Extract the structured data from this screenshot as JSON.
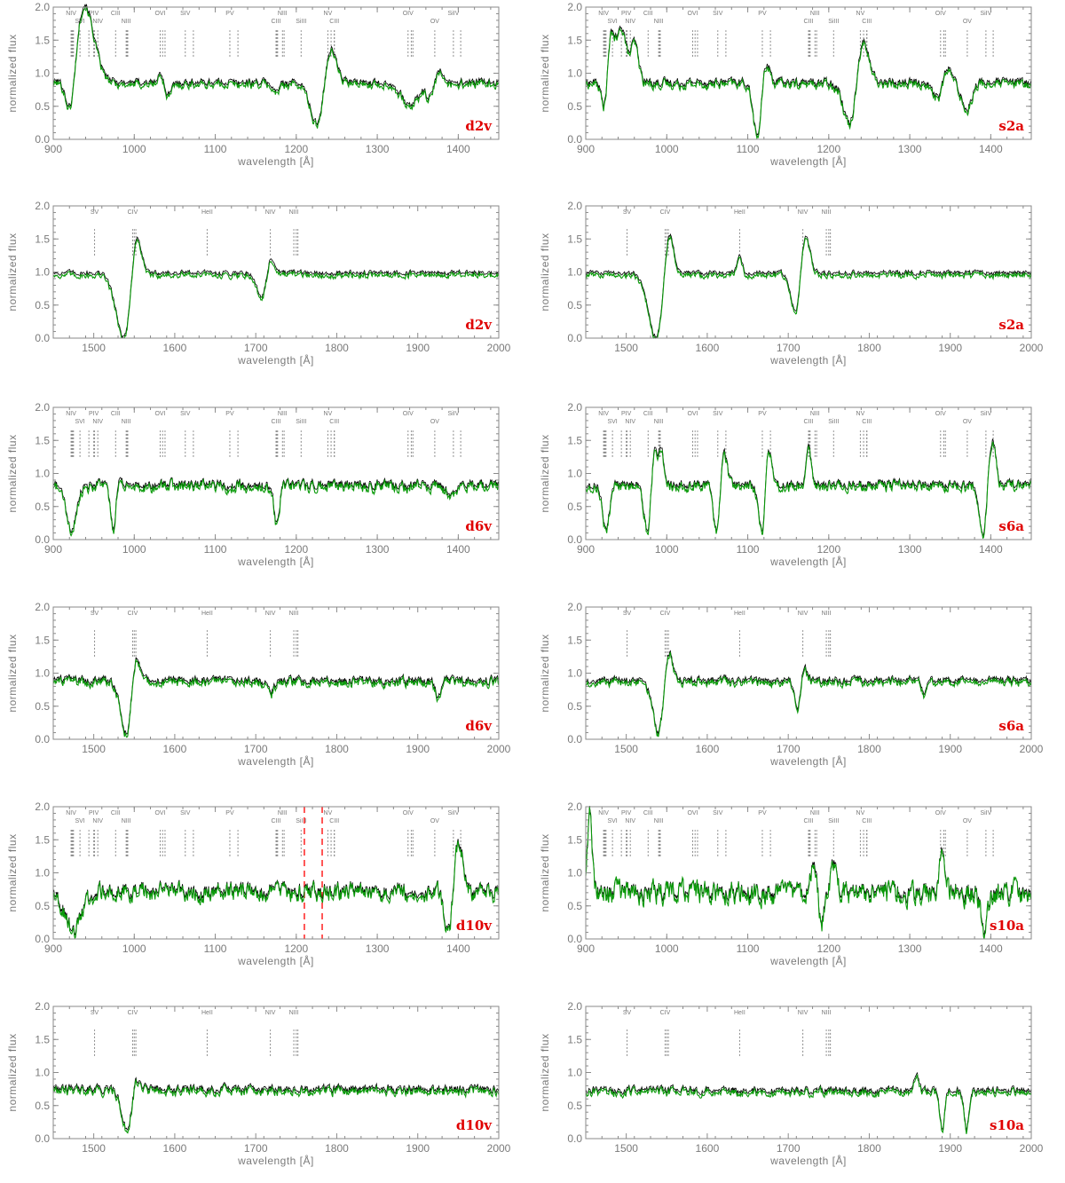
{
  "figure": {
    "colors": {
      "axis": "#8a8a8a",
      "model_a": "#000000",
      "model_b": "#0a9a0a",
      "panel_label": "#e00000",
      "marker": "#ff2020"
    },
    "ylabel": "normalized flux",
    "xlabel": "wavelength [Å]"
  },
  "chart_data": [
    {
      "type": "line",
      "label": "d2v",
      "xlim": [
        900,
        1450
      ],
      "ylim": [
        0,
        2.0
      ],
      "xticks": [
        900,
        1000,
        1100,
        1200,
        1300,
        1400
      ],
      "yticks": [
        "0.0",
        "0.5",
        "1.0",
        "1.5",
        "2.0"
      ],
      "xlabel": "wavelength [Å]",
      "ylabel": "normalized flux",
      "ions": [
        "NIV",
        "SVI",
        "PIV",
        "NIV",
        "CIII",
        "NIII",
        "OVI",
        "SIV",
        "PV",
        "CIII",
        "NIII",
        "SiIII",
        "NV",
        "CIII",
        "OIV",
        "OV",
        "SiIV"
      ],
      "profile": {
        "continuum": 0.85,
        "noise": 0.07,
        "noise_black": 0.06,
        "features": [
          [
            938,
            1.2,
            12
          ],
          [
            922,
            -0.8,
            6
          ],
          [
            1038,
            -0.3,
            6
          ],
          [
            1034,
            0.35,
            4
          ],
          [
            1240,
            0.75,
            8
          ],
          [
            1228,
            -0.8,
            9
          ],
          [
            1340,
            -0.35,
            10
          ],
          [
            1372,
            0.45,
            6
          ],
          [
            1368,
            -0.5,
            6
          ],
          [
            1175,
            -0.15,
            4
          ]
        ]
      }
    },
    {
      "type": "line",
      "label": "s2a",
      "xlim": [
        900,
        1450
      ],
      "ylim": [
        0,
        2.0
      ],
      "xticks": [
        900,
        1000,
        1100,
        1200,
        1300,
        1400
      ],
      "yticks": [
        "0.0",
        "0.5",
        "1.0",
        "1.5",
        "2.0"
      ],
      "xlabel": "wavelength [Å]",
      "ylabel": "normalized flux",
      "ions": [
        "NIV",
        "SVI",
        "PIV",
        "NIV",
        "CIII",
        "NIII",
        "OVI",
        "SIV",
        "PV",
        "CIII",
        "NIII",
        "SiIII",
        "NV",
        "CIII",
        "OIV",
        "OV",
        "SiIV"
      ],
      "profile": {
        "continuum": 0.85,
        "noise": 0.08,
        "noise_black": 0.07,
        "features": [
          [
            930,
            0.9,
            6
          ],
          [
            945,
            0.8,
            5
          ],
          [
            960,
            0.6,
            5
          ],
          [
            924,
            -0.8,
            4
          ],
          [
            1112,
            -0.85,
            5
          ],
          [
            1122,
            0.35,
            5
          ],
          [
            1240,
            0.8,
            8
          ],
          [
            1228,
            -0.8,
            8
          ],
          [
            1345,
            0.5,
            6
          ],
          [
            1340,
            -0.4,
            8
          ],
          [
            1370,
            -0.4,
            6
          ]
        ]
      }
    },
    {
      "type": "line",
      "label": "d2v",
      "xlim": [
        1450,
        2000
      ],
      "ylim": [
        0,
        2.0
      ],
      "xticks": [
        1500,
        1600,
        1700,
        1800,
        1900,
        2000
      ],
      "yticks": [
        "0.0",
        "0.5",
        "1.0",
        "1.5",
        "2.0"
      ],
      "xlabel": "wavelength [Å]",
      "ylabel": "normalized flux",
      "ions": [
        "SV",
        "CIV",
        "HeII",
        "NIV",
        "NIII"
      ],
      "profile": {
        "continuum": 0.97,
        "noise": 0.05,
        "noise_black": 0.04,
        "features": [
          [
            1552,
            0.85,
            6
          ],
          [
            1538,
            -1.0,
            10
          ],
          [
            1718,
            0.3,
            5
          ],
          [
            1708,
            -0.4,
            6
          ]
        ]
      }
    },
    {
      "type": "line",
      "label": "s2a",
      "xlim": [
        1450,
        2000
      ],
      "ylim": [
        0,
        2.0
      ],
      "xticks": [
        1500,
        1600,
        1700,
        1800,
        1900,
        2000
      ],
      "yticks": [
        "0.0",
        "0.5",
        "1.0",
        "1.5",
        "2.0"
      ],
      "xlabel": "wavelength [Å]",
      "ylabel": "normalized flux",
      "ions": [
        "SV",
        "CIV",
        "HeII",
        "NIV",
        "NIII"
      ],
      "profile": {
        "continuum": 0.97,
        "noise": 0.05,
        "noise_black": 0.04,
        "features": [
          [
            1552,
            0.9,
            6
          ],
          [
            1538,
            -1.0,
            10
          ],
          [
            1640,
            0.25,
            3
          ],
          [
            1720,
            0.65,
            6
          ],
          [
            1710,
            -0.7,
            6
          ]
        ]
      }
    },
    {
      "type": "line",
      "label": "d6v",
      "xlim": [
        900,
        1450
      ],
      "ylim": [
        0,
        2.0
      ],
      "xticks": [
        900,
        1000,
        1100,
        1200,
        1300,
        1400
      ],
      "yticks": [
        "0.0",
        "0.5",
        "1.0",
        "1.5",
        "2.0"
      ],
      "xlabel": "wavelength [Å]",
      "ylabel": "normalized flux",
      "ions": [
        "NIV",
        "SVI",
        "PIV",
        "NIV",
        "CIII",
        "NIII",
        "OVI",
        "SIV",
        "PV",
        "CIII",
        "NIII",
        "SiIII",
        "NV",
        "CIII",
        "OIV",
        "OV",
        "SiIV"
      ],
      "profile": {
        "continuum": 0.82,
        "noise": 0.1,
        "noise_black": 0.08,
        "features": [
          [
            922,
            -0.7,
            6
          ],
          [
            975,
            -0.7,
            4
          ],
          [
            980,
            0.35,
            3
          ],
          [
            1176,
            -0.6,
            3
          ],
          [
            1392,
            -0.2,
            6
          ]
        ]
      }
    },
    {
      "type": "line",
      "label": "s6a",
      "xlim": [
        900,
        1450
      ],
      "ylim": [
        0,
        2.0
      ],
      "xticks": [
        900,
        1000,
        1100,
        1200,
        1300,
        1400
      ],
      "yticks": [
        "0.0",
        "0.5",
        "1.0",
        "1.5",
        "2.0"
      ],
      "xlabel": "wavelength [Å]",
      "ylabel": "normalized flux",
      "ions": [
        "NIV",
        "SVI",
        "PIV",
        "NIV",
        "CIII",
        "NIII",
        "OVI",
        "SIV",
        "PV",
        "CIII",
        "NIII",
        "SiIII",
        "NV",
        "CIII",
        "OIV",
        "OV",
        "SiIV"
      ],
      "profile": {
        "continuum": 0.82,
        "noise": 0.09,
        "noise_black": 0.07,
        "features": [
          [
            925,
            -0.7,
            4
          ],
          [
            976,
            -0.7,
            4
          ],
          [
            985,
            0.6,
            3
          ],
          [
            993,
            0.6,
            3
          ],
          [
            1062,
            -0.8,
            4
          ],
          [
            1070,
            0.6,
            4
          ],
          [
            1118,
            -0.8,
            4
          ],
          [
            1125,
            0.6,
            4
          ],
          [
            1175,
            0.6,
            3
          ],
          [
            1390,
            -0.8,
            4
          ],
          [
            1402,
            0.7,
            4
          ]
        ]
      }
    },
    {
      "type": "line",
      "label": "d6v",
      "xlim": [
        1450,
        2000
      ],
      "ylim": [
        0,
        2.0
      ],
      "xticks": [
        1500,
        1600,
        1700,
        1800,
        1900,
        2000
      ],
      "yticks": [
        "0.0",
        "0.5",
        "1.0",
        "1.5",
        "2.0"
      ],
      "xlabel": "wavelength [Å]",
      "ylabel": "normalized flux",
      "ions": [
        "SV",
        "CIV",
        "HeII",
        "NIV",
        "NIII"
      ],
      "profile": {
        "continuum": 0.88,
        "noise": 0.08,
        "noise_black": 0.07,
        "features": [
          [
            1552,
            0.45,
            5
          ],
          [
            1540,
            -0.8,
            7
          ],
          [
            1718,
            -0.2,
            4
          ],
          [
            1925,
            -0.25,
            3
          ]
        ]
      }
    },
    {
      "type": "line",
      "label": "s6a",
      "xlim": [
        1450,
        2000
      ],
      "ylim": [
        0,
        2.0
      ],
      "xticks": [
        1500,
        1600,
        1700,
        1800,
        1900,
        2000
      ],
      "yticks": [
        "0.0",
        "0.5",
        "1.0",
        "1.5",
        "2.0"
      ],
      "xlabel": "wavelength [Å]",
      "ylabel": "normalized flux",
      "ions": [
        "SV",
        "CIV",
        "HeII",
        "NIV",
        "NIII"
      ],
      "profile": {
        "continuum": 0.88,
        "noise": 0.07,
        "noise_black": 0.06,
        "features": [
          [
            1552,
            0.55,
            5
          ],
          [
            1540,
            -0.8,
            7
          ],
          [
            1718,
            0.3,
            4
          ],
          [
            1712,
            -0.5,
            4
          ],
          [
            1868,
            -0.2,
            3
          ]
        ]
      }
    },
    {
      "type": "line",
      "label": "d10v",
      "xlim": [
        900,
        1450
      ],
      "ylim": [
        0,
        2.0
      ],
      "xticks": [
        900,
        1000,
        1100,
        1200,
        1300,
        1400
      ],
      "yticks": [
        "0.0",
        "0.5",
        "1.0",
        "1.5",
        "2.0"
      ],
      "xlabel": "wavelength [Å]",
      "ylabel": "normalized flux",
      "ions": [
        "NIV",
        "SVI",
        "PIV",
        "NIV",
        "CIII",
        "NIII",
        "OVI",
        "SIV",
        "PV",
        "CIII",
        "NIII",
        "SiIII",
        "NV",
        "CIII",
        "OIV",
        "OV",
        "SiIV"
      ],
      "markers": [
        1210,
        1232
      ],
      "profile": {
        "continuum": 0.72,
        "noise": 0.15,
        "noise_black": 0.13,
        "features": [
          [
            925,
            -0.6,
            10
          ],
          [
            1400,
            0.75,
            6
          ],
          [
            1388,
            -0.7,
            5
          ]
        ]
      }
    },
    {
      "type": "line",
      "label": "s10a",
      "xlim": [
        900,
        1450
      ],
      "ylim": [
        0,
        2.0
      ],
      "xticks": [
        900,
        1000,
        1100,
        1200,
        1300,
        1400
      ],
      "yticks": [
        "0.0",
        "0.5",
        "1.0",
        "1.5",
        "2.0"
      ],
      "xlabel": "wavelength [Å]",
      "ylabel": "normalized flux",
      "ions": [
        "NIV",
        "SVI",
        "PIV",
        "NIV",
        "CIII",
        "NIII",
        "OVI",
        "SIV",
        "PV",
        "CIII",
        "NIII",
        "SiIII",
        "NV",
        "CIII",
        "OIV",
        "OV",
        "SiIV"
      ],
      "profile": {
        "continuum": 0.72,
        "noise": 0.2,
        "noise_black": 0.16,
        "features": [
          [
            905,
            1.2,
            3
          ],
          [
            1183,
            0.5,
            4
          ],
          [
            1190,
            -0.6,
            3
          ],
          [
            1206,
            0.5,
            3
          ],
          [
            1340,
            0.6,
            3
          ],
          [
            1392,
            -0.6,
            4
          ]
        ]
      }
    },
    {
      "type": "line",
      "label": "d10v",
      "xlim": [
        1450,
        2000
      ],
      "ylim": [
        0,
        2.0
      ],
      "xticks": [
        1500,
        1600,
        1700,
        1800,
        1900,
        2000
      ],
      "yticks": [
        "0.0",
        "0.5",
        "1.0",
        "1.5",
        "2.0"
      ],
      "xlabel": "wavelength [Å]",
      "ylabel": "normalized flux",
      "ions": [
        "SV",
        "CIV",
        "HeII",
        "NIV",
        "NIII"
      ],
      "profile": {
        "continuum": 0.74,
        "noise": 0.08,
        "noise_black": 0.07,
        "features": [
          [
            1540,
            -0.6,
            6
          ],
          [
            1552,
            0.2,
            3
          ]
        ]
      }
    },
    {
      "type": "line",
      "label": "s10a",
      "xlim": [
        1450,
        2000
      ],
      "ylim": [
        0,
        2.0
      ],
      "xticks": [
        1500,
        1600,
        1700,
        1800,
        1900,
        2000
      ],
      "yticks": [
        "0.0",
        "0.5",
        "1.0",
        "1.5",
        "2.0"
      ],
      "xlabel": "wavelength [Å]",
      "ylabel": "normalized flux",
      "ions": [
        "SV",
        "CIV",
        "HeII",
        "NIV",
        "NIII"
      ],
      "profile": {
        "continuum": 0.72,
        "noise": 0.07,
        "noise_black": 0.06,
        "features": [
          [
            1890,
            -0.6,
            3
          ],
          [
            1920,
            -0.6,
            3
          ],
          [
            1858,
            0.25,
            3
          ]
        ]
      }
    }
  ]
}
